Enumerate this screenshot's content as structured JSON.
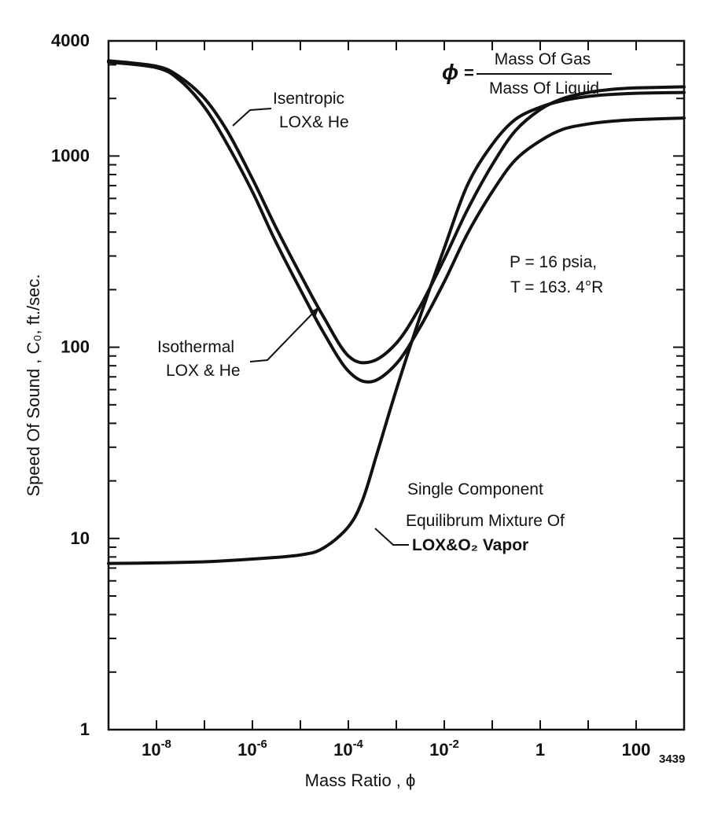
{
  "chart_data": {
    "type": "line",
    "title": "",
    "xlabel": "Mass Ratio , ϕ",
    "ylabel": "Speed Of Sound , C₀, ft./sec.",
    "xscale": "log",
    "yscale": "log",
    "xlim": [
      1e-09,
      1000
    ],
    "ylim": [
      1,
      4000
    ],
    "x_ticks": [
      {
        "value": 1e-08,
        "base": "10",
        "exp": "-8"
      },
      {
        "value": 1e-06,
        "base": "10",
        "exp": "-6"
      },
      {
        "value": 0.0001,
        "base": "10",
        "exp": "-4"
      },
      {
        "value": 0.01,
        "base": "10",
        "exp": "-2"
      },
      {
        "value": 1,
        "base": "1",
        "exp": ""
      },
      {
        "value": 100,
        "base": "100",
        "exp": ""
      }
    ],
    "y_ticks": [
      {
        "value": 1,
        "label": "1"
      },
      {
        "value": 10,
        "label": "10"
      },
      {
        "value": 100,
        "label": "100"
      },
      {
        "value": 1000,
        "label": "1000"
      },
      {
        "value": 4000,
        "label": "4000"
      }
    ],
    "series": [
      {
        "name": "Isentropic LOX & He",
        "x": [
          1e-09,
          1e-08,
          3e-08,
          1e-07,
          3e-07,
          1e-06,
          3e-06,
          1e-05,
          3e-05,
          0.0001,
          0.0003,
          0.001,
          0.003,
          0.01,
          0.03,
          0.1,
          0.3,
          1,
          3,
          10,
          30,
          100,
          1000
        ],
        "y": [
          3150,
          2950,
          2600,
          2000,
          1350,
          760,
          430,
          240,
          145,
          90,
          84,
          105,
          160,
          290,
          520,
          900,
          1350,
          1750,
          2000,
          2150,
          2230,
          2270,
          2300
        ]
      },
      {
        "name": "Isothermal LOX & He",
        "x": [
          1e-09,
          1e-08,
          3e-08,
          1e-07,
          3e-07,
          1e-06,
          3e-06,
          1e-05,
          3e-05,
          0.0001,
          0.0003,
          0.001,
          0.003,
          0.01,
          0.03,
          0.1,
          0.3,
          1,
          3,
          10,
          30,
          100,
          1000
        ],
        "y": [
          3100,
          2900,
          2500,
          1800,
          1150,
          650,
          360,
          200,
          120,
          75,
          66,
          82,
          125,
          220,
          390,
          650,
          950,
          1200,
          1380,
          1470,
          1520,
          1550,
          1580
        ]
      },
      {
        "name": "Single Component Equilibrum Mixture Of LOX & O₂ Vapor",
        "x": [
          1e-09,
          1e-08,
          1e-07,
          1e-06,
          1e-05,
          3e-05,
          0.0001,
          0.0002,
          0.0004,
          0.001,
          0.003,
          0.01,
          0.03,
          0.1,
          0.3,
          1,
          3,
          10,
          30,
          100,
          1000
        ],
        "y": [
          7.4,
          7.45,
          7.55,
          7.8,
          8.2,
          8.9,
          11.5,
          16,
          28,
          60,
          140,
          330,
          700,
          1150,
          1550,
          1800,
          1950,
          2050,
          2100,
          2130,
          2150
        ]
      }
    ],
    "annotations": {
      "phi_def_symbol": "ϕ",
      "phi_def_eq": "=",
      "phi_def_numerator": "Mass Of Gas",
      "phi_def_denominator": "Mass Of Liquid",
      "conditions_line1": "P = 16  psia,",
      "conditions_line2": "T = 163. 4°R",
      "isentropic_line1": "Isentropic",
      "isentropic_line2": "LOX& He",
      "isothermal_line1": "Isothermal",
      "isothermal_line2": "LOX & He",
      "single_line1": "Single Component",
      "single_line2": "Equilibrum Mixture Of",
      "single_line3": "LOX&O₂ Vapor"
    },
    "figure_number": "3439",
    "grid": false,
    "legend": "none (inline annotations)"
  }
}
